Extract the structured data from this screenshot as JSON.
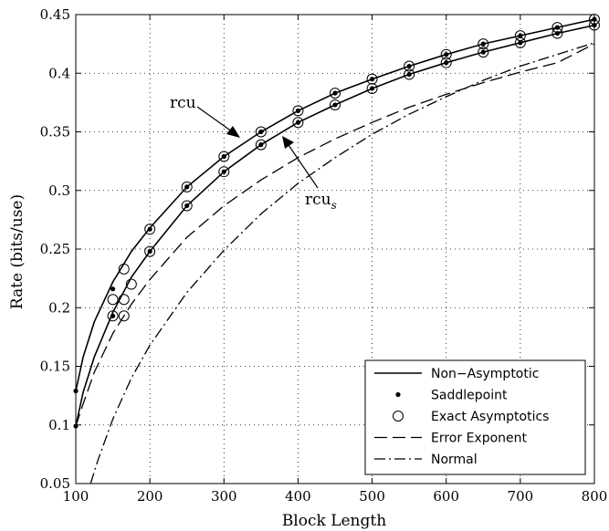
{
  "chart_data": {
    "type": "line",
    "xlabel": "Block Length",
    "ylabel": "Rate (bits/use)",
    "xlim": [
      100,
      800
    ],
    "ylim": [
      0.05,
      0.45
    ],
    "xticks": [
      "100",
      "200",
      "300",
      "400",
      "500",
      "600",
      "700",
      "800"
    ],
    "yticks": [
      "0.05",
      "0.1",
      "0.15",
      "0.2",
      "0.25",
      "0.3",
      "0.35",
      "0.4",
      "0.45"
    ],
    "grid": true,
    "legend_position": "bottom-right",
    "annotations": [
      {
        "text": "rcu",
        "subscript": ""
      },
      {
        "text": "rcu",
        "subscript": "s"
      }
    ],
    "series": [
      {
        "name": "Non−Asymptotic",
        "style": "solid",
        "group": "rcu",
        "x": [
          100,
          110,
          125,
          150,
          175,
          200,
          250,
          300,
          350,
          400,
          450,
          500,
          550,
          600,
          650,
          700,
          750,
          800
        ],
        "y": [
          0.129,
          0.158,
          0.188,
          0.222,
          0.248,
          0.268,
          0.303,
          0.329,
          0.35,
          0.368,
          0.383,
          0.395,
          0.406,
          0.416,
          0.425,
          0.432,
          0.439,
          0.446
        ]
      },
      {
        "name": "Non−Asymptotic",
        "style": "solid",
        "group": "rcu_s",
        "x": [
          100,
          110,
          125,
          150,
          175,
          200,
          250,
          300,
          350,
          400,
          450,
          500,
          550,
          600,
          650,
          700,
          750,
          800
        ],
        "y": [
          0.099,
          0.128,
          0.158,
          0.196,
          0.226,
          0.248,
          0.287,
          0.316,
          0.339,
          0.358,
          0.373,
          0.387,
          0.399,
          0.409,
          0.418,
          0.426,
          0.434,
          0.441
        ]
      },
      {
        "name": "Saddlepoint",
        "style": "dot",
        "x": [
          100,
          150,
          200,
          250,
          300,
          350,
          400,
          450,
          500,
          550,
          600,
          650,
          700,
          750,
          800,
          100,
          150,
          200,
          250,
          300,
          350,
          400,
          450,
          500,
          550,
          600,
          650,
          700,
          750,
          800
        ],
        "y": [
          0.129,
          0.216,
          0.267,
          0.303,
          0.329,
          0.35,
          0.368,
          0.383,
          0.395,
          0.406,
          0.416,
          0.425,
          0.432,
          0.439,
          0.446,
          0.099,
          0.193,
          0.248,
          0.287,
          0.316,
          0.339,
          0.358,
          0.373,
          0.387,
          0.399,
          0.409,
          0.418,
          0.426,
          0.434,
          0.441
        ]
      },
      {
        "name": "Exact Asymptotics",
        "style": "circle",
        "x": [
          150,
          150,
          165,
          165,
          175,
          165,
          200,
          250,
          300,
          350,
          400,
          450,
          500,
          550,
          600,
          650,
          700,
          750,
          800,
          200,
          250,
          300,
          350,
          400,
          450,
          500,
          550,
          600,
          650,
          700,
          750,
          800
        ],
        "y": [
          0.193,
          0.207,
          0.233,
          0.193,
          0.22,
          0.207,
          0.267,
          0.303,
          0.329,
          0.35,
          0.368,
          0.383,
          0.395,
          0.406,
          0.416,
          0.425,
          0.432,
          0.439,
          0.446,
          0.248,
          0.287,
          0.316,
          0.339,
          0.358,
          0.373,
          0.387,
          0.399,
          0.409,
          0.418,
          0.426,
          0.434,
          0.441
        ]
      },
      {
        "name": "Error Exponent",
        "style": "dash",
        "x": [
          100,
          110,
          125,
          150,
          175,
          200,
          250,
          300,
          350,
          400,
          450,
          500,
          550,
          600,
          650,
          700,
          750,
          800
        ],
        "y": [
          0.099,
          0.118,
          0.145,
          0.178,
          0.203,
          0.224,
          0.26,
          0.287,
          0.309,
          0.328,
          0.344,
          0.358,
          0.371,
          0.382,
          0.392,
          0.401,
          0.409,
          0.425
        ]
      },
      {
        "name": "Normal",
        "style": "dashdot",
        "x": [
          120,
          130,
          150,
          175,
          200,
          250,
          300,
          350,
          400,
          450,
          500,
          550,
          600,
          650,
          700,
          750,
          800
        ],
        "y": [
          0.05,
          0.07,
          0.105,
          0.14,
          0.168,
          0.213,
          0.249,
          0.28,
          0.306,
          0.328,
          0.348,
          0.365,
          0.38,
          0.394,
          0.406,
          0.416,
          0.426
        ]
      }
    ],
    "legend": [
      {
        "label": "Non−Asymptotic",
        "style": "solid"
      },
      {
        "label": "Saddlepoint",
        "style": "dot"
      },
      {
        "label": "Exact Asymptotics",
        "style": "circle"
      },
      {
        "label": "Error Exponent",
        "style": "dash"
      },
      {
        "label": "Normal",
        "style": "dashdot"
      }
    ]
  }
}
